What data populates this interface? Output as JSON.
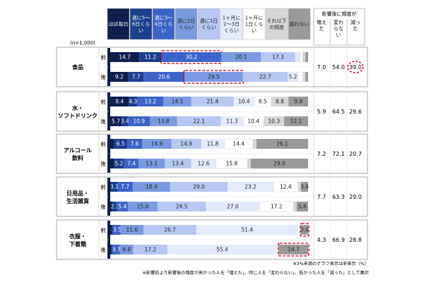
{
  "chart_data": {
    "type": "bar",
    "orientation": "horizontal",
    "stacked": true,
    "percent_scale": true,
    "n_label": "(n=1,000)",
    "frequency_legend": [
      "ほぼ毎日",
      "週に5〜6日くらい",
      "週に3〜4日くらい",
      "週に2日くらい",
      "週に1日くらい",
      "1ヶ月に2〜3日くらい",
      "1ヶ月に1日くらい",
      "それ以下の頻度",
      "買わない"
    ],
    "colors": [
      "#0e1f4e",
      "#1c3f8f",
      "#3e63c8",
      "#7a99e0",
      "#b6c8f1",
      "#e4ebfb",
      "#ffffff",
      "#d6d6d6",
      "#9a9a9a"
    ],
    "right_table_title": "影響後に頻度が",
    "right_table_headers": [
      "増えた",
      "変わらない",
      "減った"
    ],
    "row_labels": {
      "before": "前",
      "after": "後"
    },
    "categories": [
      {
        "label": "食品",
        "before": {
          "values": [
            14.7,
            11.2,
            30.2,
            20.1,
            17.3,
            2.5,
            1.2,
            1.4,
            1.4
          ],
          "labels": [
            "14.7",
            "11.2",
            "30.2",
            "20.1",
            "17.3",
            "",
            "",
            "",
            ""
          ]
        },
        "after": {
          "values": [
            9.2,
            7.7,
            20.6,
            29.5,
            22.7,
            5.2,
            2.5,
            1.3,
            1.3
          ],
          "labels": [
            "9.2",
            "7.7",
            "20.6",
            "29.5",
            "22.7",
            "5.2",
            "",
            "",
            ""
          ]
        },
        "change": [
          "7.0",
          "54.0",
          "39.0"
        ]
      },
      {
        "label": "水・ソフトドリンク",
        "before": {
          "values": [
            9.4,
            4.3,
            13.2,
            14.1,
            21.4,
            10.4,
            8.5,
            8.8,
            9.9
          ],
          "labels": [
            "9.4",
            "4.3",
            "13.2",
            "14.1",
            "21.4",
            "10.4",
            "8.5",
            "8.8",
            "9.9"
          ]
        },
        "after": {
          "values": [
            5.7,
            3.4,
            10.9,
            13.8,
            22.1,
            11.3,
            10.4,
            10.3,
            12.1
          ],
          "labels": [
            "5.7",
            "3.4",
            "10.9",
            "13.8",
            "22.1",
            "11.3",
            "10.4",
            "10.3",
            "12.1"
          ]
        },
        "change": [
          "5.9",
          "64.5",
          "29.6"
        ]
      },
      {
        "label": "アルコール飲料",
        "before": {
          "values": [
            2.0,
            6.5,
            7.6,
            14.9,
            14.9,
            11.8,
            14.4,
            1.8,
            26.1
          ],
          "labels": [
            "",
            "6.5",
            "7.6",
            "14.9",
            "14.9",
            "11.8",
            "14.4",
            "",
            "26.1"
          ]
        },
        "after": {
          "values": [
            1.8,
            5.2,
            7.4,
            13.1,
            13.4,
            12.6,
            15.8,
            1.7,
            29.0
          ],
          "labels": [
            "",
            "5.2",
            "7.4",
            "13.1",
            "13.4",
            "12.6",
            "15.8",
            "",
            "29.0"
          ]
        },
        "change": [
          "7.2",
          "72.1",
          "20.7"
        ]
      },
      {
        "label": "日用品・生活雑貨",
        "before": {
          "values": [
            0.6,
            3.1,
            7.7,
            18.9,
            29.0,
            23.2,
            12.4,
            1.5,
            3.6
          ],
          "labels": [
            "",
            "3.1",
            "7.7",
            "18.9",
            "29.0",
            "23.2",
            "12.4",
            "",
            "3.6"
          ]
        },
        "after": {
          "values": [
            1.2,
            2.3,
            5.4,
            15.0,
            24.5,
            27.0,
            17.2,
            1.6,
            5.8
          ],
          "labels": [
            "",
            "2.3",
            "5.4",
            "15.0",
            "24.5",
            "27.0",
            "17.2",
            "",
            "5.8"
          ]
        },
        "change": [
          "7.7",
          "63.3",
          "29.0"
        ]
      },
      {
        "label": "衣服・下着類",
        "before": {
          "values": [
            0.8,
            0.9,
            3.5,
            11.6,
            26.7,
            51.4,
            1.0,
            0.5,
            3.6
          ],
          "labels": [
            "",
            "",
            "3.5",
            "11.6",
            "26.7",
            "51.4",
            "",
            "",
            "3.6"
          ]
        },
        "after": {
          "values": [
            0.5,
            0.7,
            3.7,
            6.8,
            17.2,
            55.4,
            0.5,
            0.5,
            14.7
          ],
          "labels": [
            "",
            "",
            "3.7",
            "6.8",
            "17.2",
            "55.4",
            "",
            "",
            "14.7"
          ]
        },
        "change": [
          "4.3",
          "66.9",
          "28.8"
        ]
      }
    ],
    "notes": [
      "※3%未満のグラフ表示は非表示（%）",
      "※影響前より影響後の頻度が高かった人を「増えた」、同じ人を「変わらない」、低かった人を「減った」として集計"
    ]
  }
}
